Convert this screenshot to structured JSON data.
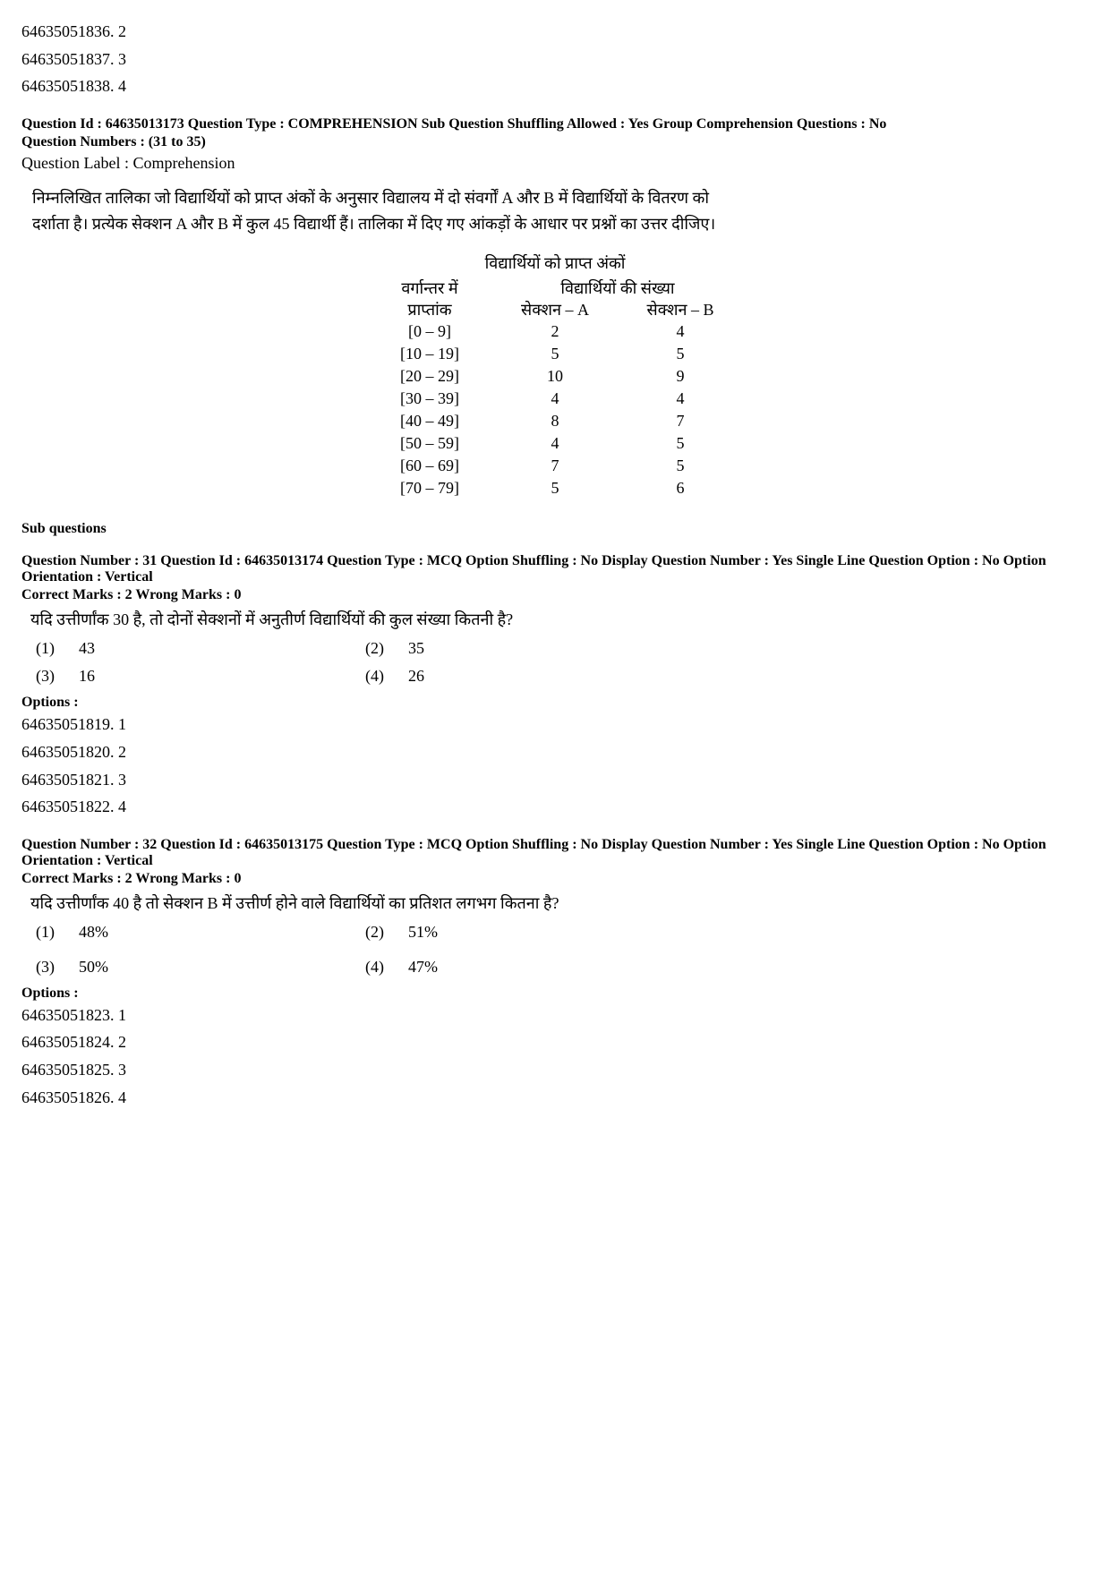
{
  "top_options": [
    "64635051836. 2",
    "64635051837. 3",
    "64635051838. 4"
  ],
  "comp": {
    "meta": "Question Id : 64635013173  Question Type : COMPREHENSION  Sub Question Shuffling Allowed : Yes  Group Comprehension Questions : No",
    "numbers": "Question Numbers : (31 to 35)",
    "label": "Question Label : Comprehension",
    "passage_line1": "निम्नलिखित तालिका जो विद्यार्थियों को प्राप्त अंकों के अनुसार विद्यालय में दो संवर्गों A और B में विद्यार्थियों के वितरण को",
    "passage_line2": "दर्शाता है। प्रत्येक सेक्शन A और B में कुल 45 विद्यार्थी हैं। तालिका में दिए गए आंकड़ों के आधार पर प्रश्नों का उत्तर दीजिए।"
  },
  "table": {
    "title": "विद्यार्थियों को प्राप्त अंकों",
    "head_col1_line1": "वर्गान्तर में",
    "head_col1_line2": "प्राप्तांक",
    "head_col2": "विद्यार्थियों की संख्या",
    "sub_a": "सेक्शन – A",
    "sub_b": "सेक्शन – B",
    "rows": [
      {
        "r": "[0 – 9]",
        "a": "2",
        "b": "4"
      },
      {
        "r": "[10 – 19]",
        "a": "5",
        "b": "5"
      },
      {
        "r": "[20 – 29]",
        "a": "10",
        "b": "9"
      },
      {
        "r": "[30 – 39]",
        "a": "4",
        "b": "4"
      },
      {
        "r": "[40 – 49]",
        "a": "8",
        "b": "7"
      },
      {
        "r": "[50 – 59]",
        "a": "4",
        "b": "5"
      },
      {
        "r": "[60 – 69]",
        "a": "7",
        "b": "5"
      },
      {
        "r": "[70 – 79]",
        "a": "5",
        "b": "6"
      }
    ]
  },
  "sub_questions_label": "Sub questions",
  "q31": {
    "meta": "Question Number : 31  Question Id : 64635013174  Question Type : MCQ  Option Shuffling : No  Display Question Number : Yes  Single Line Question Option : No  Option Orientation : Vertical",
    "marks": "Correct Marks : 2  Wrong Marks : 0",
    "text": "यदि उत्तीर्णांक 30 है, तो दोनों सेक्शनों में अनुतीर्ण विद्यार्थियों की कुल संख्या कितनी है?",
    "c1l": "(1)",
    "c1v": "43",
    "c2l": "(2)",
    "c2v": "35",
    "c3l": "(3)",
    "c3v": "16",
    "c4l": "(4)",
    "c4v": "26",
    "options_label": "Options :",
    "options": [
      "64635051819. 1",
      "64635051820. 2",
      "64635051821. 3",
      "64635051822. 4"
    ]
  },
  "q32": {
    "meta": "Question Number : 32  Question Id : 64635013175  Question Type : MCQ  Option Shuffling : No  Display Question Number : Yes  Single Line Question Option : No  Option Orientation : Vertical",
    "marks": "Correct Marks : 2  Wrong Marks : 0",
    "text": "यदि उत्तीर्णांक 40 है तो सेक्शन B में उत्तीर्ण होने वाले विद्यार्थियों का प्रतिशत लगभग कितना है?",
    "c1l": "(1)",
    "c1v": "48%",
    "c2l": "(2)",
    "c2v": "51%",
    "c3l": "(3)",
    "c3v": "50%",
    "c4l": "(4)",
    "c4v": "47%",
    "options_label": "Options :",
    "options": [
      "64635051823. 1",
      "64635051824. 2",
      "64635051825. 3",
      "64635051826. 4"
    ]
  }
}
